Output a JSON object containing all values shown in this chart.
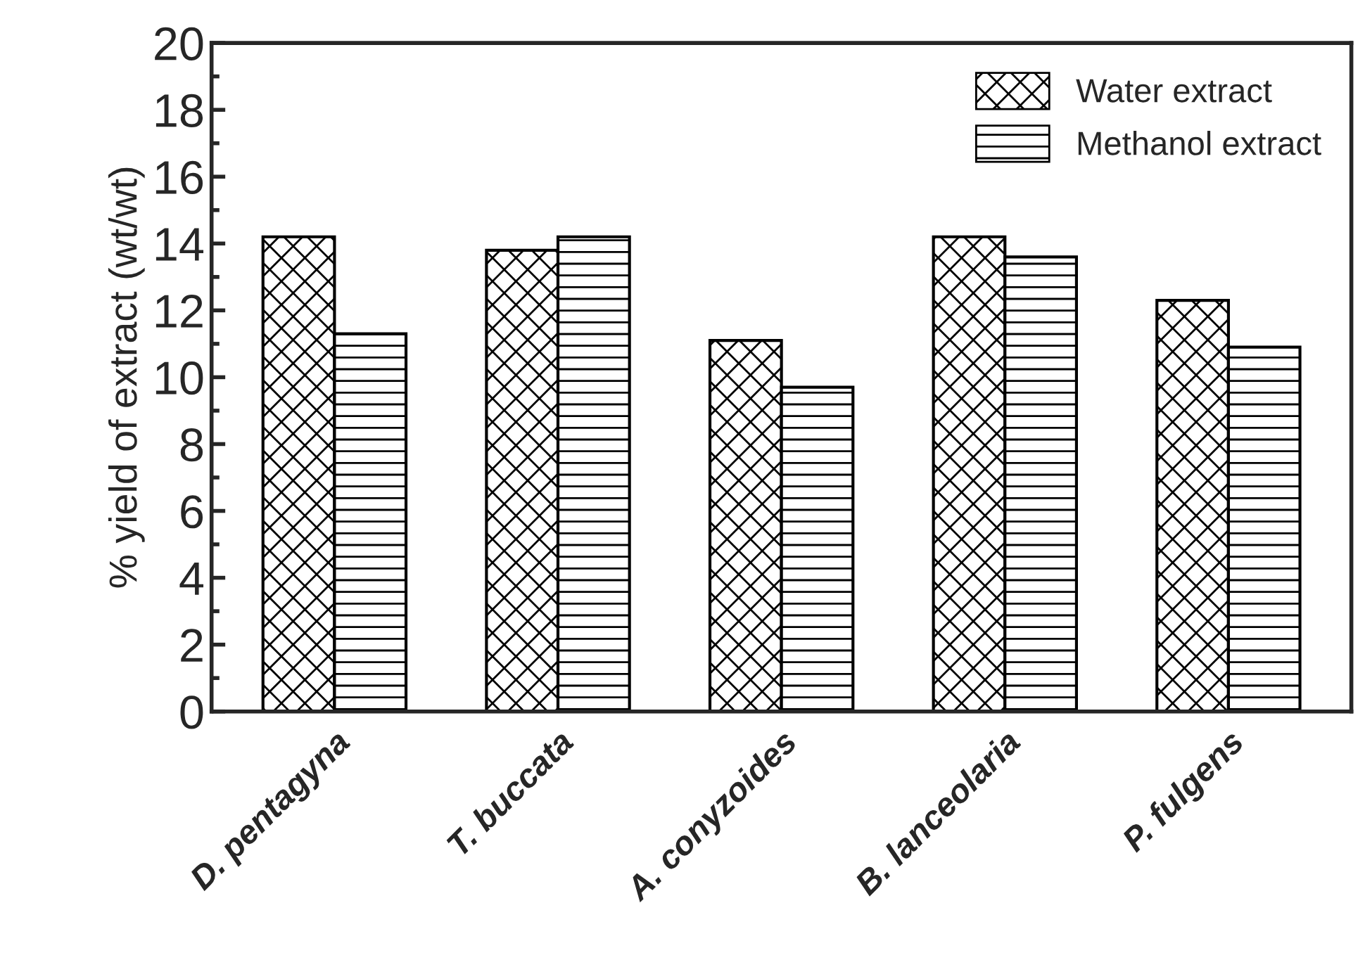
{
  "chart_data": {
    "type": "bar",
    "ylabel": "% yield of extract (wt/wt)",
    "categories": [
      "D. pentagyna",
      "T. buccata",
      "A. conyzoides",
      "B. lanceolaria",
      "P. fulgens"
    ],
    "series": [
      {
        "name": "Water extract",
        "color": "#000000",
        "values": [
          14.2,
          13.8,
          11.1,
          14.2,
          12.3
        ]
      },
      {
        "name": "Methanol extract",
        "color": "#000000",
        "values": [
          11.3,
          14.2,
          9.7,
          13.6,
          10.9
        ]
      }
    ],
    "ylim": [
      0,
      20
    ],
    "yticks": [
      0,
      2,
      4,
      6,
      8,
      10,
      12,
      14,
      16,
      18,
      20
    ],
    "grid": false,
    "legend": "top right"
  }
}
